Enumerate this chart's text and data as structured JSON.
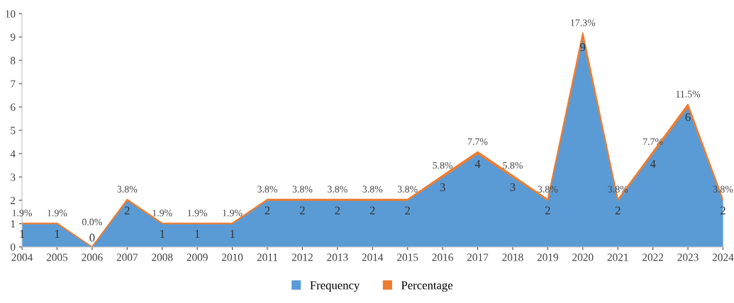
{
  "chart_data": {
    "type": "area",
    "stacked": true,
    "categories": [
      "2004",
      "2005",
      "2006",
      "2007",
      "2008",
      "2009",
      "2010",
      "2011",
      "2012",
      "2013",
      "2014",
      "2015",
      "2016",
      "2017",
      "2018",
      "2019",
      "2020",
      "2021",
      "2022",
      "2023",
      "2024"
    ],
    "series": [
      {
        "name": "Frequency",
        "color": "#5b9bd5",
        "values": [
          1,
          1,
          0,
          2,
          1,
          1,
          1,
          2,
          2,
          2,
          2,
          2,
          3,
          4,
          3,
          2,
          9,
          2,
          4,
          6,
          2
        ],
        "value_labels": [
          "1",
          "1",
          "0",
          "2",
          "1",
          "1",
          "1",
          "2",
          "2",
          "2",
          "2",
          "2",
          "3",
          "4",
          "3",
          "2",
          "9",
          "2",
          "4",
          "6",
          "2"
        ]
      },
      {
        "name": "Percentage",
        "color": "#ed7d31",
        "values": [
          0.019,
          0.019,
          0.0,
          0.038,
          0.019,
          0.019,
          0.019,
          0.038,
          0.038,
          0.038,
          0.038,
          0.038,
          0.058,
          0.077,
          0.058,
          0.038,
          0.173,
          0.038,
          0.077,
          0.115,
          0.038
        ],
        "value_labels": [
          "1.9%",
          "1.9%",
          "0.0%",
          "3.8%",
          "1.9%",
          "1.9%",
          "1.9%",
          "3.8%",
          "3.8%",
          "3.8%",
          "3.8%",
          "3.8%",
          "5.8%",
          "7.7%",
          "5.8%",
          "3.8%",
          "17.3%",
          "3.8%",
          "7.7%",
          "11.5%",
          "3.8%"
        ]
      }
    ],
    "ylim": [
      0,
      10
    ],
    "yticks": [
      0,
      1,
      2,
      3,
      4,
      5,
      6,
      7,
      8,
      9,
      10
    ],
    "legend": "bottom"
  }
}
